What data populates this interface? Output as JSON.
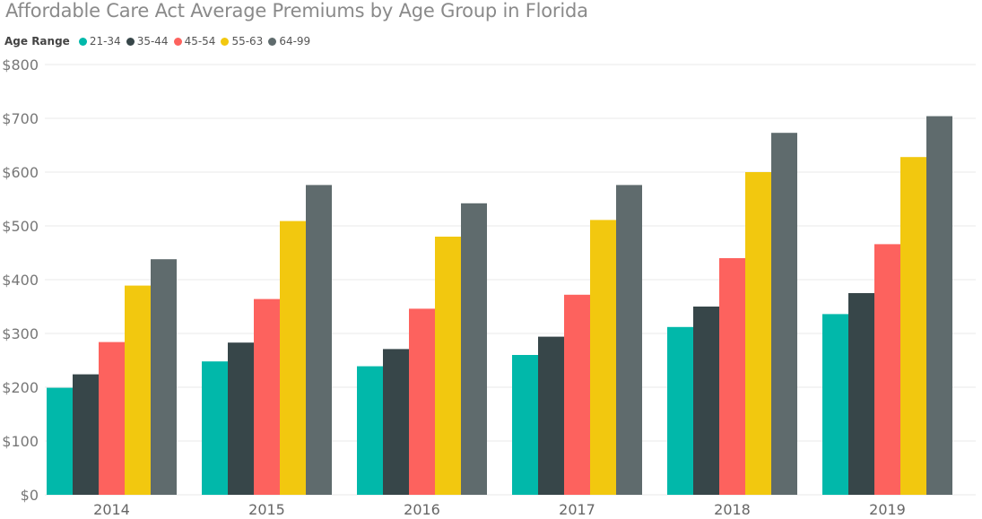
{
  "chart_data": {
    "type": "bar",
    "title": "Affordable Care Act Average Premiums by Age Group in Florida",
    "legend_title": "Age Range",
    "legend_position": "top-left",
    "xlabel": "",
    "ylabel": "",
    "ylim": [
      0,
      800
    ],
    "yticks": [
      0,
      100,
      200,
      300,
      400,
      500,
      600,
      700,
      800
    ],
    "ytick_labels": [
      "$0",
      "$100",
      "$200",
      "$300",
      "$400",
      "$500",
      "$600",
      "$700",
      "$800"
    ],
    "grid": true,
    "categories": [
      "2014",
      "2015",
      "2016",
      "2017",
      "2018",
      "2019"
    ],
    "series": [
      {
        "name": "21-34",
        "color": "#01b8aa",
        "values": [
          199,
          248,
          239,
          260,
          312,
          336
        ]
      },
      {
        "name": "35-44",
        "color": "#374649",
        "values": [
          224,
          283,
          271,
          294,
          350,
          375
        ]
      },
      {
        "name": "45-54",
        "color": "#fd625e",
        "values": [
          284,
          364,
          346,
          372,
          440,
          466
        ]
      },
      {
        "name": "55-63",
        "color": "#f2c80f",
        "values": [
          389,
          509,
          480,
          511,
          600,
          628
        ]
      },
      {
        "name": "64-99",
        "color": "#5f6b6d",
        "values": [
          438,
          576,
          542,
          576,
          673,
          704
        ]
      }
    ]
  }
}
